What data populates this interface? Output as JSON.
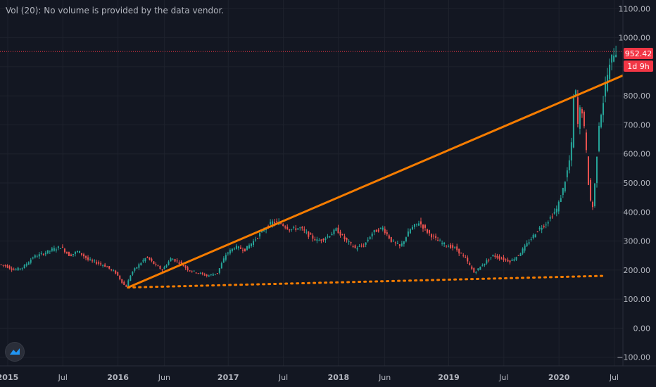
{
  "header": {
    "volume_note": "Vol (20): No volume is provided by the data vendor."
  },
  "price_tag": {
    "value": "952.42",
    "countdown": "1d 9h",
    "color": "#f23645"
  },
  "colors": {
    "background": "#131722",
    "grid": "#1e222d",
    "up": "#26a69a",
    "down": "#ef5350",
    "trendline": "#f57c00"
  },
  "logo": {
    "icon": "tradingview-logo-icon"
  },
  "chart_data": {
    "type": "candlestick",
    "y_ticks": [
      "1100.00",
      "1000.00",
      "900.00",
      "800.00",
      "700.00",
      "600.00",
      "500.00",
      "400.00",
      "300.00",
      "200.00",
      "100.00",
      "0.00",
      "−100.00"
    ],
    "ylim": [
      -130,
      1130
    ],
    "x_ticks": [
      {
        "label": "2015",
        "t": 2015.0,
        "year": true
      },
      {
        "label": "Jul",
        "t": 2015.5
      },
      {
        "label": "2016",
        "t": 2016.0,
        "year": true
      },
      {
        "label": "Jun",
        "t": 2016.42
      },
      {
        "label": "2017",
        "t": 2017.0,
        "year": true
      },
      {
        "label": "Jul",
        "t": 2017.5
      },
      {
        "label": "2018",
        "t": 2018.0,
        "year": true
      },
      {
        "label": "Jun",
        "t": 2018.42
      },
      {
        "label": "2019",
        "t": 2019.0,
        "year": true
      },
      {
        "label": "Jul",
        "t": 2019.5
      },
      {
        "label": "2020",
        "t": 2020.0,
        "year": true
      },
      {
        "label": "Jul",
        "t": 2020.5
      }
    ],
    "xlim": [
      2014.93,
      2020.58
    ],
    "last_price": 952.42,
    "series_path": [
      [
        2014.93,
        220
      ],
      [
        2015.0,
        215
      ],
      [
        2015.08,
        200
      ],
      [
        2015.16,
        210
      ],
      [
        2015.25,
        245
      ],
      [
        2015.33,
        255
      ],
      [
        2015.42,
        270
      ],
      [
        2015.5,
        280
      ],
      [
        2015.58,
        250
      ],
      [
        2015.66,
        265
      ],
      [
        2015.75,
        235
      ],
      [
        2015.83,
        225
      ],
      [
        2015.9,
        215
      ],
      [
        2016.0,
        190
      ],
      [
        2016.09,
        140
      ],
      [
        2016.14,
        190
      ],
      [
        2016.2,
        215
      ],
      [
        2016.28,
        245
      ],
      [
        2016.35,
        220
      ],
      [
        2016.42,
        200
      ],
      [
        2016.5,
        240
      ],
      [
        2016.58,
        225
      ],
      [
        2016.66,
        200
      ],
      [
        2016.75,
        190
      ],
      [
        2016.83,
        180
      ],
      [
        2016.92,
        190
      ],
      [
        2017.0,
        255
      ],
      [
        2017.08,
        280
      ],
      [
        2017.17,
        270
      ],
      [
        2017.25,
        300
      ],
      [
        2017.33,
        335
      ],
      [
        2017.42,
        365
      ],
      [
        2017.5,
        360
      ],
      [
        2017.58,
        340
      ],
      [
        2017.67,
        345
      ],
      [
        2017.75,
        320
      ],
      [
        2017.83,
        300
      ],
      [
        2017.92,
        315
      ],
      [
        2018.0,
        340
      ],
      [
        2018.08,
        305
      ],
      [
        2018.17,
        275
      ],
      [
        2018.25,
        285
      ],
      [
        2018.33,
        330
      ],
      [
        2018.42,
        345
      ],
      [
        2018.5,
        300
      ],
      [
        2018.58,
        280
      ],
      [
        2018.67,
        340
      ],
      [
        2018.75,
        365
      ],
      [
        2018.83,
        330
      ],
      [
        2018.92,
        300
      ],
      [
        2019.0,
        285
      ],
      [
        2019.08,
        275
      ],
      [
        2019.17,
        240
      ],
      [
        2019.25,
        190
      ],
      [
        2019.33,
        220
      ],
      [
        2019.42,
        250
      ],
      [
        2019.5,
        240
      ],
      [
        2019.58,
        230
      ],
      [
        2019.66,
        255
      ],
      [
        2019.75,
        300
      ],
      [
        2019.83,
        340
      ],
      [
        2019.9,
        360
      ],
      [
        2020.0,
        410
      ],
      [
        2020.05,
        470
      ],
      [
        2020.1,
        550
      ],
      [
        2020.13,
        610
      ],
      [
        2020.16,
        870
      ],
      [
        2020.19,
        700
      ],
      [
        2020.22,
        780
      ],
      [
        2020.26,
        640
      ],
      [
        2020.29,
        480
      ],
      [
        2020.32,
        400
      ],
      [
        2020.35,
        520
      ],
      [
        2020.38,
        700
      ],
      [
        2020.42,
        780
      ],
      [
        2020.45,
        860
      ],
      [
        2020.48,
        900
      ],
      [
        2020.51,
        950
      ],
      [
        2020.53,
        952
      ]
    ],
    "trendlines": [
      {
        "style": "solid",
        "from": [
          2016.09,
          140
        ],
        "to": [
          2020.58,
          870
        ]
      },
      {
        "style": "dotted",
        "from": [
          2016.09,
          140
        ],
        "to": [
          2020.4,
          180
        ]
      }
    ]
  }
}
